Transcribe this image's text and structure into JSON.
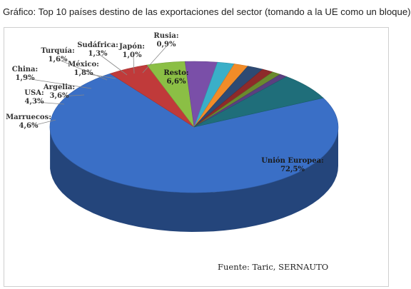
{
  "page": {
    "heading": "Gráfico: Top 10 países destino de las exportaciones del sector (tomando a la UE como un bloque)"
  },
  "chart_data": {
    "type": "pie",
    "title": "",
    "source": "Fuente: Taric, SERNAUTO",
    "slices": [
      {
        "label": "Unión Europea",
        "value": 72.5,
        "value_text": "72,5%",
        "color": "#3A6FC6"
      },
      {
        "label": "Marruecos",
        "value": 4.6,
        "value_text": "4,6%",
        "color": "#C03A3A"
      },
      {
        "label": "USA",
        "value": 4.3,
        "value_text": "4,3%",
        "color": "#8BBF45"
      },
      {
        "label": "Argelia",
        "value": 3.6,
        "value_text": "3,6%",
        "color": "#7A4FA8"
      },
      {
        "label": "China",
        "value": 1.9,
        "value_text": "1,9%",
        "color": "#3AAFC8"
      },
      {
        "label": "Turquía",
        "value": 1.6,
        "value_text": "1,6%",
        "color": "#F28C28"
      },
      {
        "label": "México",
        "value": 1.8,
        "value_text": "1,8%",
        "color": "#2E4A73"
      },
      {
        "label": "Sudáfrica",
        "value": 1.3,
        "value_text": "1,3%",
        "color": "#8E2A2A"
      },
      {
        "label": "Japón",
        "value": 1.0,
        "value_text": "1,0%",
        "color": "#6A8A2E"
      },
      {
        "label": "Rusia",
        "value": 0.9,
        "value_text": "0,9%",
        "color": "#5A3F80"
      },
      {
        "label": "Resto",
        "value": 6.6,
        "value_text": "6,6%",
        "color": "#1F6E7A"
      }
    ],
    "style": "3d-pie"
  }
}
